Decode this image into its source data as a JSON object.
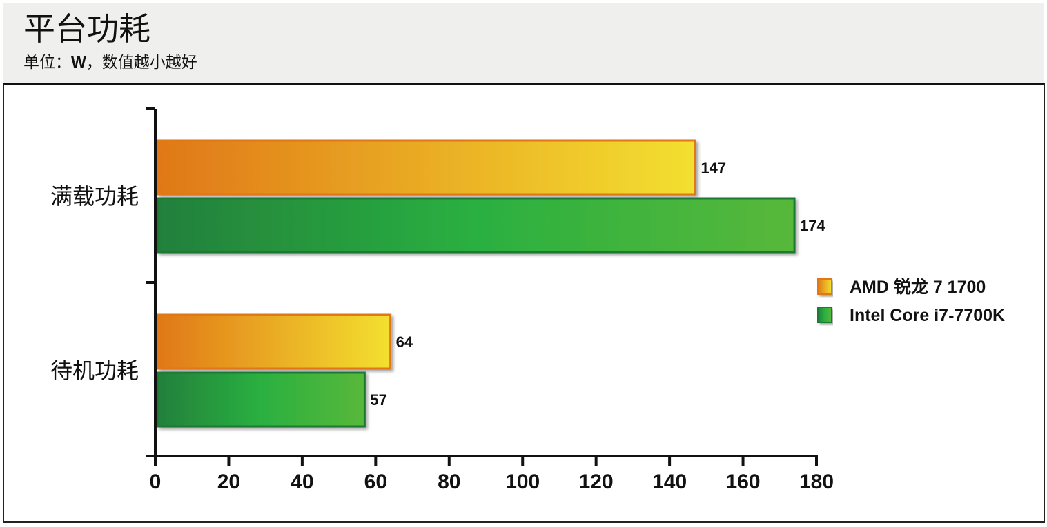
{
  "header": {
    "title": "平台功耗",
    "subtitle_prefix": "单位：",
    "subtitle_unit": "W",
    "subtitle_suffix": "，数值越小越好"
  },
  "chart_data": {
    "type": "bar",
    "orientation": "horizontal",
    "title": "平台功耗",
    "subtitle": "单位：W，数值越小越好",
    "categories": [
      "满载功耗",
      "待机功耗"
    ],
    "series": [
      {
        "name": "AMD 锐龙 7 1700",
        "values": [
          147,
          64
        ],
        "gradient": [
          "#e07818",
          "#f3e030"
        ],
        "border": "#e07818"
      },
      {
        "name": "Intel Core i7-7700K",
        "values": [
          174,
          57
        ],
        "gradient": [
          "#23803c",
          "#2ab040",
          "#58b83a"
        ],
        "border": "#1c7a30"
      }
    ],
    "xlim": [
      0,
      180
    ],
    "xticks": [
      0,
      20,
      40,
      60,
      80,
      100,
      120,
      140,
      160,
      180
    ],
    "grid": false,
    "legend_position": "right"
  }
}
